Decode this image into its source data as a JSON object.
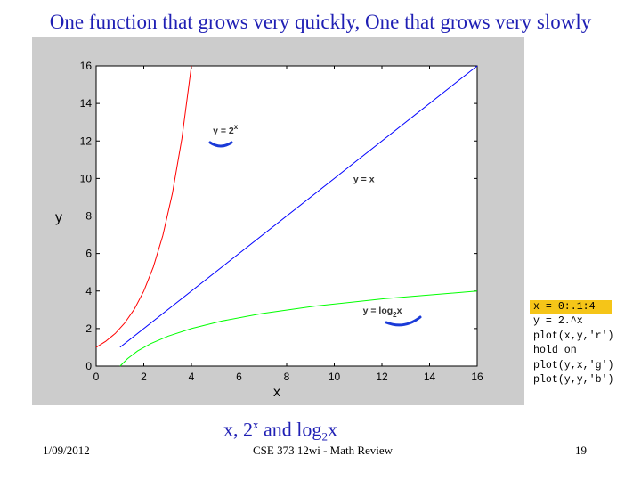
{
  "slide": {
    "title": "One function that grows very quickly, One that grows very slowly",
    "caption": {
      "prefix": "x, 2",
      "sup": "x",
      "middle": " and log",
      "sub": "2",
      "suffix": "x"
    },
    "footer_date": "1/09/2012",
    "footer_course": "CSE 373 12wi - Math Review",
    "page_number": "19"
  },
  "code_lines": [
    "x = 0:.1:4",
    "y = 2.^x",
    "plot(x,y,'r')",
    "hold on",
    "plot(y,x,'g')",
    "plot(y,y,'b')"
  ],
  "chart_data": {
    "type": "line",
    "xlabel": "x",
    "ylabel": "y",
    "xlim": [
      0,
      16
    ],
    "ylim": [
      0,
      16
    ],
    "xticks": [
      0,
      2,
      4,
      6,
      8,
      10,
      12,
      14,
      16
    ],
    "yticks": [
      0,
      2,
      4,
      6,
      8,
      10,
      12,
      14,
      16
    ],
    "grid": false,
    "series": [
      {
        "color": "#ff0000",
        "x": [
          0,
          0.4,
          0.8,
          1.2,
          1.6,
          2.0,
          2.4,
          2.8,
          3.2,
          3.6,
          4.0
        ],
        "y": [
          1,
          1.32,
          1.74,
          2.3,
          3.03,
          4,
          5.28,
          6.96,
          9.19,
          12.13,
          16
        ]
      },
      {
        "color": "#00ff00",
        "x": [
          1,
          1.32,
          1.74,
          2.3,
          3.03,
          4,
          5.28,
          6.96,
          9.19,
          12.13,
          16
        ],
        "y": [
          0,
          0.4,
          0.8,
          1.2,
          1.6,
          2.0,
          2.4,
          2.8,
          3.2,
          3.6,
          4.0
        ]
      },
      {
        "color": "#0000ff",
        "x": [
          1,
          16
        ],
        "y": [
          1,
          16
        ]
      }
    ],
    "annotations": [
      {
        "base": "y = 2",
        "sup": "x",
        "sub": "",
        "tail": "",
        "x": 4.9,
        "y": 12.4
      },
      {
        "base": "y = x",
        "sup": "",
        "sub": "",
        "tail": "",
        "x": 10.8,
        "y": 9.8
      },
      {
        "base": "y = log",
        "sup": "",
        "sub": "2",
        "tail": "x",
        "x": 11.2,
        "y": 2.8
      }
    ]
  }
}
